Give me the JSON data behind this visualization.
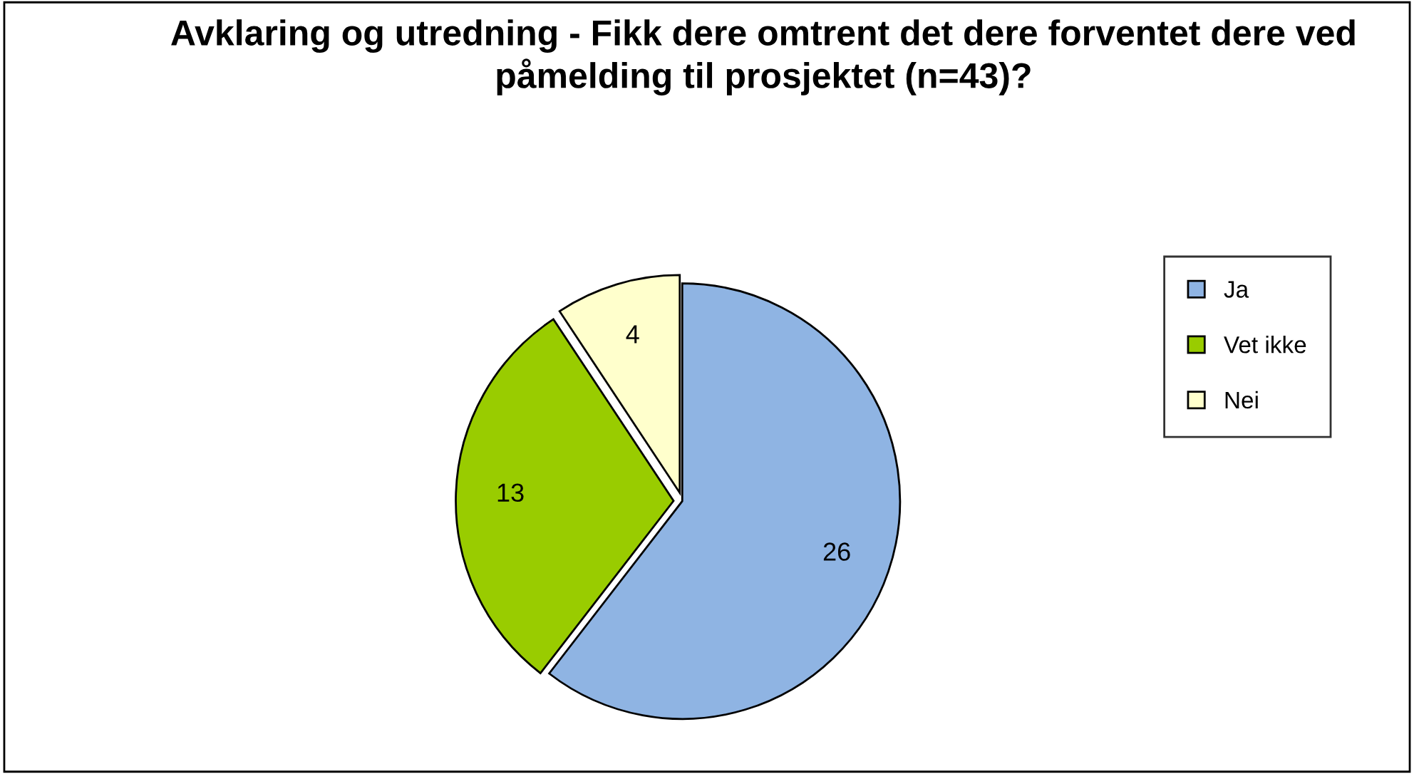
{
  "chart_data": {
    "type": "pie",
    "title": "Avklaring og utredning - Fikk dere omtrent det dere forventet dere ved påmelding til prosjektet (n=43)?",
    "categories": [
      "Ja",
      "Vet ikke",
      "Nei"
    ],
    "values": [
      26,
      13,
      4
    ],
    "colors": [
      "#8fb4e3",
      "#99cc00",
      "#ffffcc"
    ],
    "data_labels": true,
    "legend": "right"
  }
}
